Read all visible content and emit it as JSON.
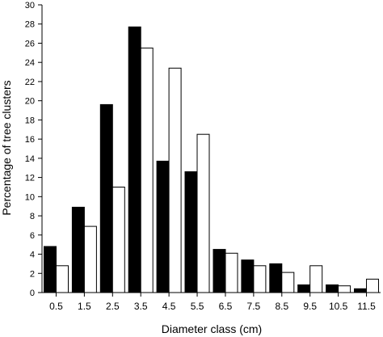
{
  "chart_data": {
    "type": "bar",
    "title": "",
    "xlabel": "Diameter class (cm)",
    "ylabel": "Percentage of tree clusters",
    "categories": [
      "0.5",
      "1.5",
      "2.5",
      "3.5",
      "4.5",
      "5.5",
      "6.5",
      "7.5",
      "8.5",
      "9.5",
      "10.5",
      "11.5"
    ],
    "series": [
      {
        "color": "#000000",
        "values": [
          4.8,
          8.9,
          19.6,
          27.7,
          13.7,
          12.6,
          4.5,
          3.4,
          3.0,
          0.8,
          0.8,
          0.4
        ]
      },
      {
        "color": "#ffffff",
        "values": [
          2.8,
          6.9,
          11.0,
          25.5,
          23.4,
          16.5,
          4.1,
          2.8,
          2.1,
          2.8,
          0.7,
          1.4
        ]
      }
    ],
    "ylim": [
      0,
      30
    ],
    "yticks": [
      "0",
      "2",
      "4",
      "6",
      "8",
      "10",
      "12",
      "14",
      "16",
      "18",
      "20",
      "22",
      "24",
      "26",
      "28",
      "30"
    ],
    "grid": false,
    "legend": "none"
  }
}
